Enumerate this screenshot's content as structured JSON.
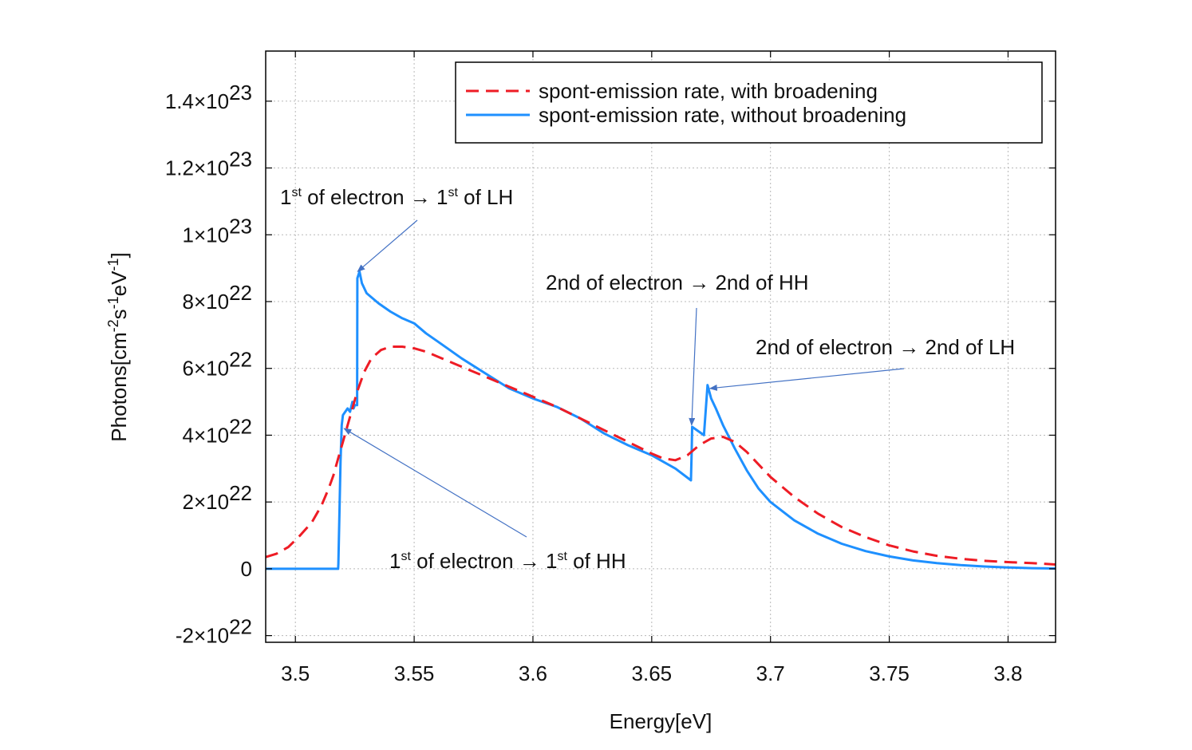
{
  "chart_data": {
    "type": "line",
    "xlabel": "Energy[eV]",
    "ylabel": "Photons[cm-2s-1eV-1]",
    "ylabel_parts": [
      "Photons[cm",
      "-2",
      "s",
      "-1",
      "eV",
      "-1",
      "]"
    ],
    "xlim": [
      3.4875,
      3.82
    ],
    "ylim": [
      -2.2e+22,
      1.55e+23
    ],
    "x_ticks": [
      3.5,
      3.55,
      3.6,
      3.65,
      3.7,
      3.75,
      3.8
    ],
    "x_tick_labels": [
      "3.5",
      "3.55",
      "3.6",
      "3.65",
      "3.7",
      "3.75",
      "3.8"
    ],
    "y_ticks": [
      -2e+22,
      0,
      2e+22,
      4e+22,
      6e+22,
      8e+22,
      1e+23,
      1.2e+23,
      1.4e+23
    ],
    "y_tick_labels": [
      {
        "base": "-2×10",
        "exp": "22"
      },
      {
        "base": "0",
        "exp": ""
      },
      {
        "base": "2×10",
        "exp": "22"
      },
      {
        "base": "4×10",
        "exp": "22"
      },
      {
        "base": "6×10",
        "exp": "22"
      },
      {
        "base": "8×10",
        "exp": "22"
      },
      {
        "base": "1×10",
        "exp": "23"
      },
      {
        "base": "1.2×10",
        "exp": "23"
      },
      {
        "base": "1.4×10",
        "exp": "23"
      }
    ],
    "grid": true,
    "legend_position": "top-right",
    "series": [
      {
        "name": "spont-emission rate, with broadening",
        "color": "#ee1c25",
        "style": "dashed",
        "x": [
          3.4875,
          3.492,
          3.497,
          3.502,
          3.507,
          3.511,
          3.514,
          3.516,
          3.518,
          3.52,
          3.522,
          3.524,
          3.526,
          3.529,
          3.532,
          3.536,
          3.54,
          3.545,
          3.55,
          3.555,
          3.56,
          3.57,
          3.58,
          3.59,
          3.6,
          3.61,
          3.62,
          3.63,
          3.64,
          3.65,
          3.655,
          3.66,
          3.665,
          3.67,
          3.675,
          3.68,
          3.685,
          3.69,
          3.7,
          3.71,
          3.72,
          3.73,
          3.74,
          3.75,
          3.76,
          3.77,
          3.78,
          3.79,
          3.8,
          3.81,
          3.82
        ],
        "y": [
          3.5e+21,
          4.5e+21,
          6.5e+21,
          1e+22,
          1.4e+22,
          1.9e+22,
          2.4e+22,
          2.8e+22,
          3.3e+22,
          3.8e+22,
          4.3e+22,
          4.8e+22,
          5.3e+22,
          5.9e+22,
          6.3e+22,
          6.55e+22,
          6.65e+22,
          6.65e+22,
          6.6e+22,
          6.5e+22,
          6.35e+22,
          6.05e+22,
          5.75e+22,
          5.45e+22,
          5.15e+22,
          4.85e+22,
          4.5e+22,
          4.15e+22,
          3.8e+22,
          3.45e+22,
          3.3e+22,
          3.25e+22,
          3.4e+22,
          3.7e+22,
          3.9e+22,
          3.95e+22,
          3.8e+22,
          3.5e+22,
          2.75e+22,
          2.15e+22,
          1.65e+22,
          1.25e+22,
          9.5e+21,
          7e+21,
          5.2e+21,
          3.9e+21,
          3e+21,
          2.4e+21,
          2e+21,
          1.7e+21,
          1.3e+21
        ]
      },
      {
        "name": "spont-emission rate, without broadening",
        "color": "#1e90ff",
        "style": "solid",
        "x": [
          3.4875,
          3.5,
          3.51,
          3.518,
          3.5181,
          3.519,
          3.5195,
          3.52,
          3.521,
          3.522,
          3.523,
          3.524,
          3.5245,
          3.525,
          3.526,
          3.5261,
          3.527,
          3.528,
          3.53,
          3.535,
          3.54,
          3.545,
          3.55,
          3.555,
          3.56,
          3.565,
          3.57,
          3.58,
          3.59,
          3.6,
          3.61,
          3.62,
          3.63,
          3.64,
          3.65,
          3.66,
          3.6665,
          3.6668,
          3.667,
          3.672,
          3.673,
          3.6735,
          3.675,
          3.677,
          3.68,
          3.685,
          3.69,
          3.695,
          3.7,
          3.71,
          3.72,
          3.73,
          3.74,
          3.75,
          3.76,
          3.77,
          3.78,
          3.79,
          3.8,
          3.81,
          3.82
        ],
        "y": [
          0,
          0,
          0,
          0,
          1.5e+21,
          3.2e+22,
          4.3e+22,
          4.6e+22,
          4.7e+22,
          4.8e+22,
          4.7e+22,
          5e+22,
          4.8e+22,
          4.9e+22,
          4.9e+22,
          8.7e+22,
          8.9e+22,
          8.55e+22,
          8.25e+22,
          7.95e+22,
          7.7e+22,
          7.5e+22,
          7.35e+22,
          7.05e+22,
          6.8e+22,
          6.55e+22,
          6.3e+22,
          5.85e+22,
          5.4e+22,
          5.1e+22,
          4.85e+22,
          4.5e+22,
          4.05e+22,
          3.7e+22,
          3.4e+22,
          3e+22,
          2.65e+22,
          3.5e+22,
          4.25e+22,
          4e+22,
          5e+22,
          5.5e+22,
          5.1e+22,
          4.8e+22,
          4.3e+22,
          3.6e+22,
          2.95e+22,
          2.4e+22,
          2e+22,
          1.45e+22,
          1.05e+22,
          7.5e+21,
          5.3e+21,
          3.7e+21,
          2.5e+21,
          1.7e+21,
          1.1e+21,
          7e+20,
          4e+20,
          2e+20,
          1e+20
        ]
      }
    ],
    "annotations": [
      {
        "id": "lh1",
        "parts": [
          {
            "t": "1"
          },
          {
            "t": "st",
            "sup": true
          },
          {
            "t": " of electron → 1"
          },
          {
            "t": "st",
            "sup": true
          },
          {
            "t": " of LH"
          }
        ],
        "arrow_to": [
          3.5262,
          8.9e+22
        ]
      },
      {
        "id": "hh2",
        "parts": [
          {
            "t": "2nd of electron → 2nd of HH"
          }
        ],
        "arrow_to": [
          3.6668,
          4.3e+22
        ]
      },
      {
        "id": "lh2",
        "parts": [
          {
            "t": "2nd of electron → 2nd of LH"
          }
        ],
        "arrow_to": [
          3.6745,
          5.4e+22
        ]
      },
      {
        "id": "hh1",
        "parts": [
          {
            "t": "1"
          },
          {
            "t": "st",
            "sup": true
          },
          {
            "t": " of electron → 1"
          },
          {
            "t": "st",
            "sup": true
          },
          {
            "t": " of HH"
          }
        ],
        "arrow_to": [
          3.5205,
          4.2e+22
        ]
      }
    ]
  }
}
